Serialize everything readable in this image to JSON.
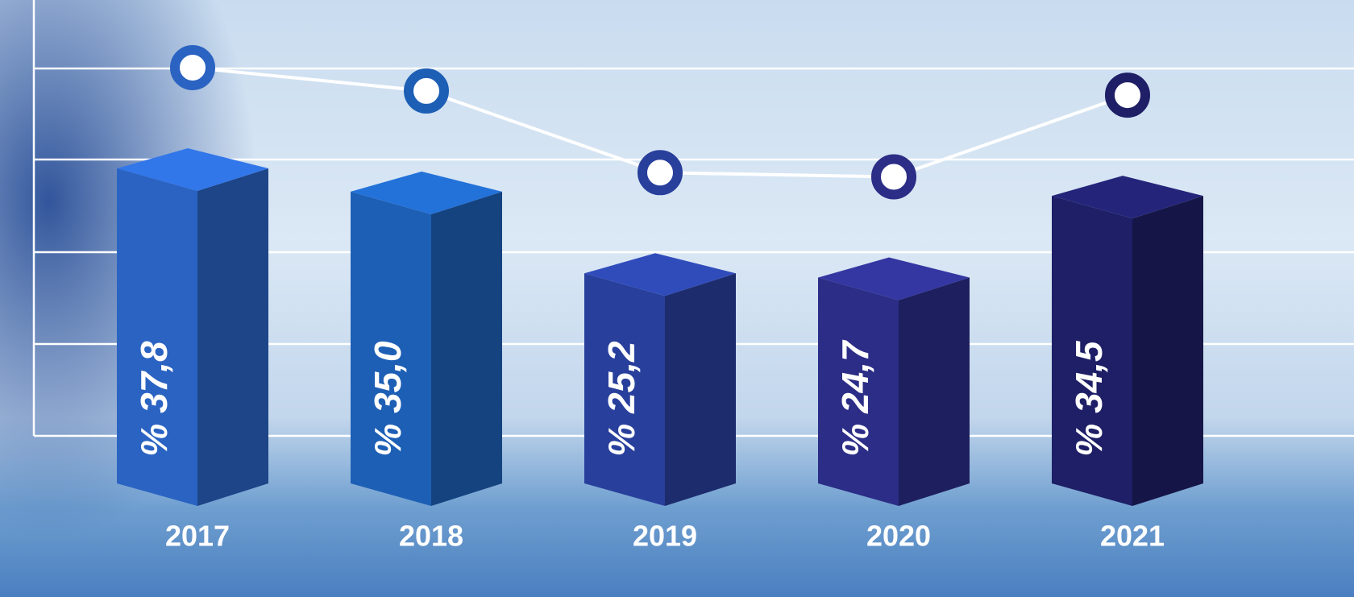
{
  "chart_data": {
    "type": "bar3d-line",
    "categories": [
      "2017",
      "2018",
      "2019",
      "2020",
      "2021"
    ],
    "values": [
      37.8,
      35.0,
      25.2,
      24.7,
      34.5
    ],
    "value_labels": [
      "% 37,8",
      "% 35,0",
      "% 25,2",
      "% 24,7",
      "% 34,5"
    ],
    "colors": [
      "#2a63c2",
      "#1d5fb5",
      "#283f9c",
      "#2b2d86",
      "#1e1f66"
    ],
    "ylim": [
      0,
      58
    ]
  }
}
